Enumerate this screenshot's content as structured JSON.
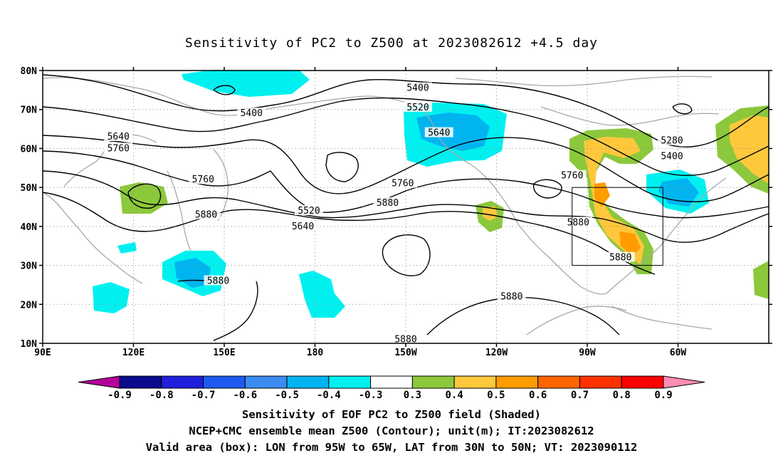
{
  "title": "Sensitivity of PC2 to Z500 at 2023082612 +4.5 day",
  "lat_axis": [
    "80N",
    "70N",
    "60N",
    "50N",
    "40N",
    "30N",
    "20N",
    "10N"
  ],
  "lon_axis": [
    "90E",
    "120E",
    "150E",
    "180",
    "150W",
    "120W",
    "90W",
    "60W"
  ],
  "contour_labels": [
    {
      "text": "5400",
      "lon": -146,
      "lat": 75.5
    },
    {
      "text": "5400",
      "lon": 159,
      "lat": 69
    },
    {
      "text": "5520",
      "lon": -146,
      "lat": 70.5
    },
    {
      "text": "5280",
      "lon": -62,
      "lat": 62
    },
    {
      "text": "5400",
      "lon": -62,
      "lat": 58
    },
    {
      "text": "5640",
      "lon": 115,
      "lat": 63
    },
    {
      "text": "5640",
      "lon": -139,
      "lat": 64
    },
    {
      "text": "5760",
      "lon": 115,
      "lat": 60
    },
    {
      "text": "5760",
      "lon": -95,
      "lat": 53
    },
    {
      "text": "5760",
      "lon": 143,
      "lat": 52
    },
    {
      "text": "5760",
      "lon": -151,
      "lat": 51
    },
    {
      "text": "5520",
      "lon": 178,
      "lat": 44
    },
    {
      "text": "5640",
      "lon": 176,
      "lat": 40
    },
    {
      "text": "5880",
      "lon": 144,
      "lat": 43
    },
    {
      "text": "5880",
      "lon": -156,
      "lat": 46
    },
    {
      "text": "5880",
      "lon": -93,
      "lat": 41
    },
    {
      "text": "5880",
      "lon": -79,
      "lat": 32
    },
    {
      "text": "5880",
      "lon": 148,
      "lat": 26
    },
    {
      "text": "5880",
      "lon": -115,
      "lat": 22
    },
    {
      "text": "5880",
      "lon": -150,
      "lat": 11
    }
  ],
  "box": {
    "lon_from": -95,
    "lon_to": -65,
    "lat_from": 30,
    "lat_to": 50
  },
  "colorbar": {
    "labels": [
      "-0.9",
      "-0.8",
      "-0.7",
      "-0.6",
      "-0.5",
      "-0.4",
      "-0.3",
      "0.3",
      "0.4",
      "0.5",
      "0.6",
      "0.7",
      "0.8",
      "0.9"
    ],
    "colors": [
      "#b4009b",
      "#0a0a8c",
      "#1e1edc",
      "#1e5af0",
      "#3c8cf0",
      "#00b4f0",
      "#00f0f0",
      "#ffffff",
      "#8cc83c",
      "#ffc83c",
      "#ff9c00",
      "#ff6400",
      "#ff3200",
      "#ff0000",
      "#ff8cb4"
    ]
  },
  "footer": {
    "line1": "Sensitivity of EOF PC2 to Z500 field (Shaded)",
    "line2": "NCEP+CMC ensemble mean Z500 (Contour); unit(m); IT:2023082612",
    "line3": "Valid area (box): LON from 95W to 65W, LAT from 30N to 50N; VT: 2023090112"
  }
}
